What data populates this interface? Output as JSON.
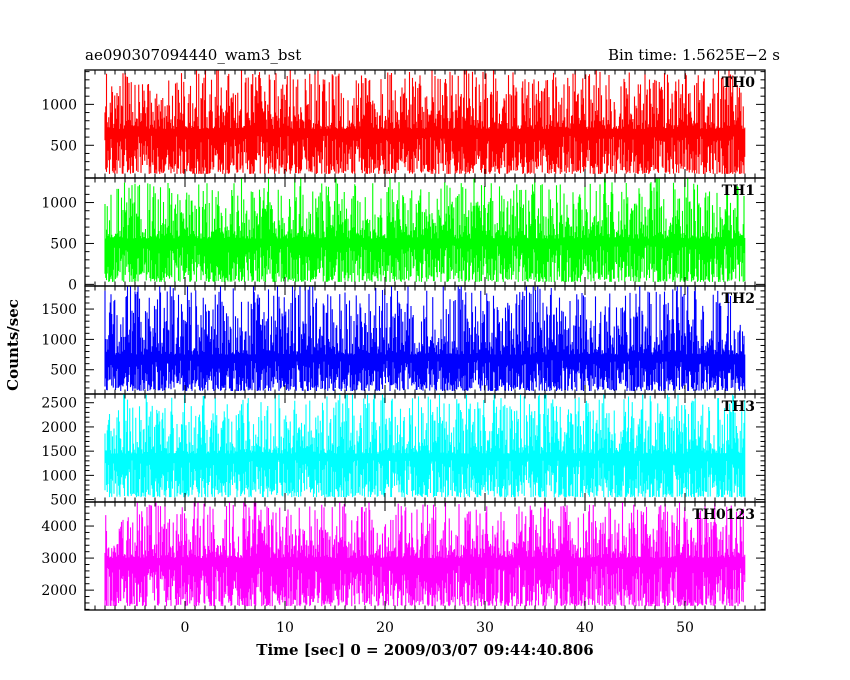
{
  "header": {
    "left": "ae090307094440_wam3_bst",
    "right": "Bin time: 1.5625E−2 s"
  },
  "chart_data": {
    "type": "line",
    "ylabel": "Counts/sec",
    "xlabel": "Time [sec] 0 = 2009/03/07 09:44:40.806",
    "xlim": [
      -10,
      58
    ],
    "data_xrange": [
      -8,
      56
    ],
    "xticks": [
      0,
      10,
      20,
      30,
      40,
      50
    ],
    "grid": false,
    "panels": [
      {
        "name": "TH0",
        "color": "#ff0000",
        "ylim": [
          100,
          1420
        ],
        "yticks": [
          500,
          1000
        ],
        "baseline": 150,
        "mean": 700,
        "upper": 1400
      },
      {
        "name": "TH1",
        "color": "#00ff00",
        "ylim": [
          -20,
          1300
        ],
        "yticks": [
          0,
          500,
          1000
        ],
        "baseline": 30,
        "mean": 560,
        "upper": 1250
      },
      {
        "name": "TH2",
        "color": "#0000ff",
        "ylim": [
          100,
          1880
        ],
        "yticks": [
          500,
          1000,
          1500
        ],
        "baseline": 150,
        "mean": 750,
        "upper": 1850
      },
      {
        "name": "TH3",
        "color": "#00ffff",
        "ylim": [
          450,
          2680
        ],
        "yticks": [
          500,
          1000,
          1500,
          2000,
          2500
        ],
        "baseline": 550,
        "mean": 1450,
        "upper": 2650
      },
      {
        "name": "TH0123",
        "color": "#ff00ff",
        "ylim": [
          1380,
          4750
        ],
        "yticks": [
          2000,
          3000,
          4000
        ],
        "baseline": 1500,
        "mean": 3000,
        "upper": 4700
      }
    ]
  }
}
